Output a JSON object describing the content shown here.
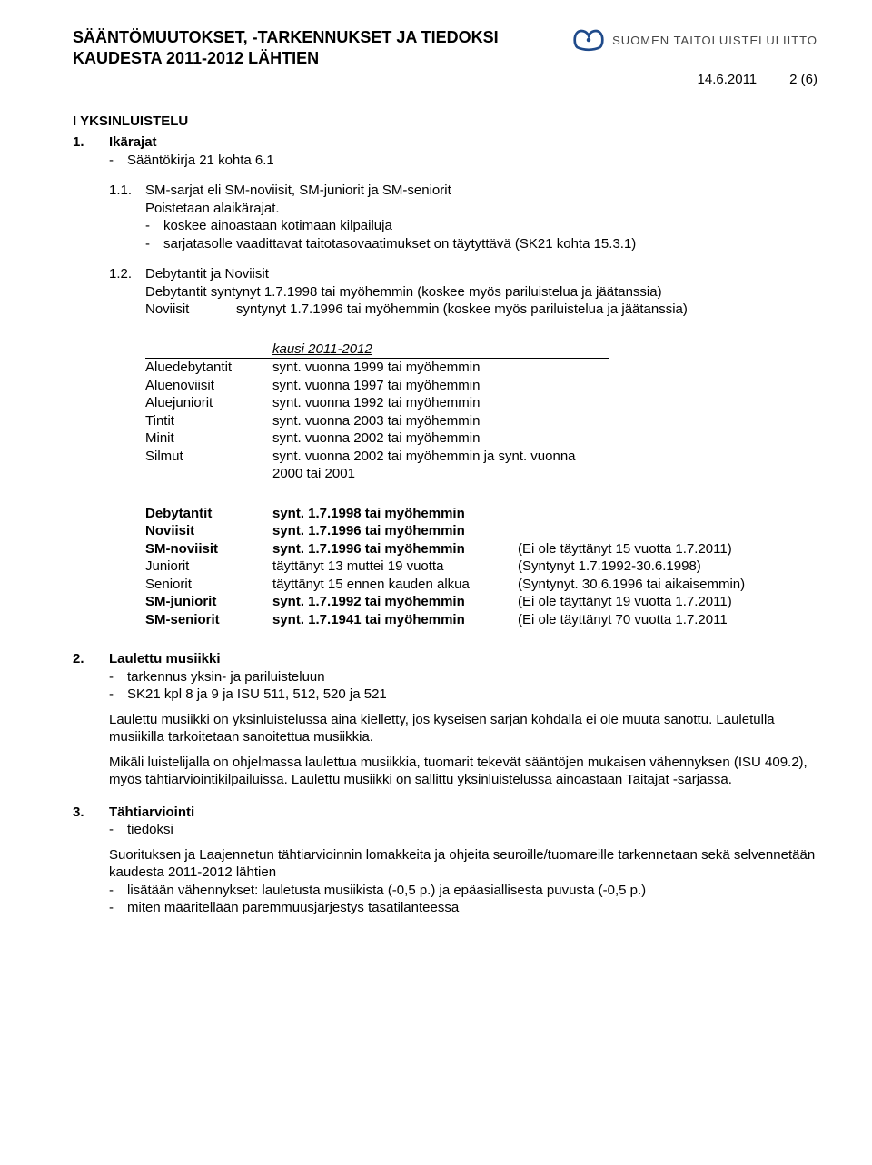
{
  "header": {
    "title_line1": "SÄÄNTÖMUUTOKSET, -TARKENNUKSET JA TIEDOKSI",
    "title_line2": "KAUDESTA 2011-2012 LÄHTIEN",
    "date": "14.6.2011",
    "page_num": "2 (6)",
    "brand": "SUOMEN TAITOLUISTELULIITTO"
  },
  "section1": {
    "heading": "I  YKSINLUISTELU",
    "s1": {
      "num": "1.",
      "title": "Ikärajat",
      "dash1": "Sääntökirja 21 kohta 6.1",
      "s11": {
        "num": "1.1.",
        "title": "SM-sarjat eli SM-noviisit, SM-juniorit ja SM-seniorit",
        "line1": "Poistetaan alaikärajat.",
        "dash1": "koskee ainoastaan kotimaan kilpailuja",
        "dash2": "sarjatasolle vaadittavat taitotasovaatimukset on täytyttävä (SK21 kohta 15.3.1)"
      },
      "s12": {
        "num": "1.2.",
        "title": "Debytantit ja Noviisit",
        "line1": "Debytantit syntynyt 1.7.1998 tai myöhemmin (koskee myös pariluistelua ja jäätanssia)",
        "line2a": "Noviisit",
        "line2b": "syntynyt 1.7.1996 tai myöhemmin (koskee myös pariluistelua ja jäätanssia)"
      }
    },
    "kausi": {
      "caption": "kausi 2011-2012",
      "rows": [
        [
          "Aluedebytantit",
          "synt. vuonna 1999 tai myöhemmin"
        ],
        [
          "Aluenoviisit",
          "synt. vuonna 1997 tai myöhemmin"
        ],
        [
          "Aluejuniorit",
          "synt. vuonna 1992 tai myöhemmin"
        ],
        [
          "Tintit",
          "synt. vuonna 2003 tai myöhemmin"
        ],
        [
          "Minit",
          "synt. vuonna 2002 tai myöhemmin"
        ],
        [
          "Silmut",
          "synt. vuonna 2002 tai myöhemmin ja synt. vuonna 2000 tai 2001"
        ]
      ],
      "rows2": [
        {
          "c0": "Debytantit",
          "c1": "synt. 1.7.1998 tai myöhemmin",
          "c2": "",
          "bold": true
        },
        {
          "c0": "Noviisit",
          "c1": "synt. 1.7.1996 tai myöhemmin",
          "c2": "",
          "bold": true
        },
        {
          "c0": "SM-noviisit",
          "c1": "synt. 1.7.1996 tai myöhemmin",
          "c2": "(Ei ole täyttänyt 15 vuotta 1.7.2011)",
          "bold": true
        },
        {
          "c0": "Juniorit",
          "c1": "täyttänyt 13 muttei 19 vuotta",
          "c2": "(Syntynyt 1.7.1992-30.6.1998)",
          "bold": false
        },
        {
          "c0": "Seniorit",
          "c1": "täyttänyt 15 ennen kauden alkua",
          "c2": "(Syntynyt. 30.6.1996 tai aikaisemmin)",
          "bold": false
        },
        {
          "c0": "SM-juniorit",
          "c1": "synt. 1.7.1992 tai myöhemmin",
          "c2": "(Ei ole täyttänyt 19 vuotta 1.7.2011)",
          "bold": true
        },
        {
          "c0": "SM-seniorit",
          "c1": "synt. 1.7.1941 tai myöhemmin",
          "c2": "(Ei ole täyttänyt 70 vuotta 1.7.2011",
          "bold": true
        }
      ]
    },
    "s2": {
      "num": "2.",
      "title": "Laulettu musiikki",
      "dash1": "tarkennus yksin- ja pariluisteluun",
      "dash2": "SK21 kpl 8 ja 9 ja ISU 511, 512, 520 ja 521",
      "p1": "Laulettu musiikki on yksinluistelussa aina kielletty, jos kyseisen sarjan kohdalla ei ole muuta sanottu. Lauletulla musiikilla tarkoitetaan sanoitettua musiikkia.",
      "p2": "Mikäli luistelijalla on ohjelmassa laulettua musiikkia, tuomarit tekevät sääntöjen mukaisen vähennyksen (ISU 409.2), myös tähtiarviointikilpailuissa. Laulettu musiikki on sallittu yksinluistelussa ainoastaan Taitajat -sarjassa."
    },
    "s3": {
      "num": "3.",
      "title": "Tähtiarviointi",
      "dash1": "tiedoksi",
      "p1": "Suorituksen ja Laajennetun tähtiarvioinnin lomakkeita ja ohjeita seuroille/tuomareille tarkennetaan sekä selvennetään kaudesta 2011-2012 lähtien",
      "dash2": "lisätään vähennykset: lauletusta musiikista (-0,5 p.) ja epäasiallisesta puvusta (-0,5 p.)",
      "dash3": "miten määritellään paremmuusjärjestys tasatilanteessa"
    }
  },
  "colors": {
    "text": "#000000",
    "bg": "#ffffff",
    "brand": "#444444",
    "logo_blue": "#1f4a8a"
  }
}
